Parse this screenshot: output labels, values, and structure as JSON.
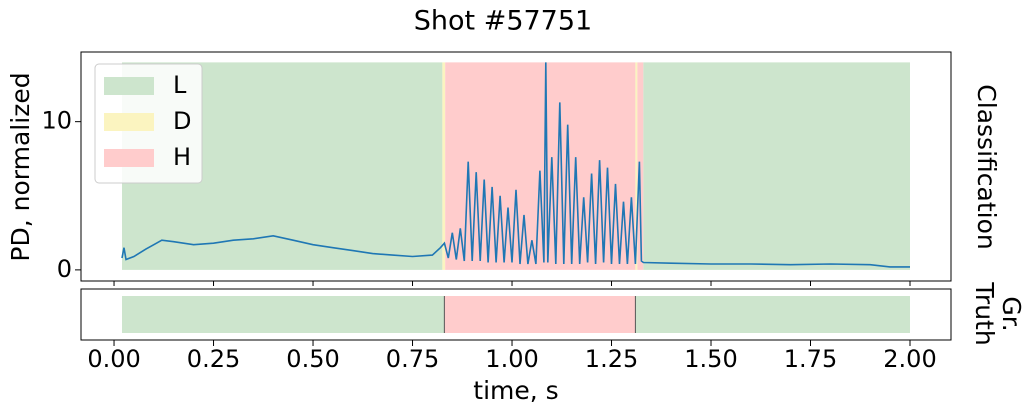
{
  "chart_data": {
    "type": "line",
    "title": "Shot #57751",
    "xlabel": "time, s",
    "ylabel": "PD, normalized",
    "right_label": "Classification",
    "gt_label": [
      "Gr.",
      "Truth"
    ],
    "xlim": [
      -0.083,
      2.103
    ],
    "ylim": [
      -0.75,
      14.7
    ],
    "xticks": [
      {
        "value": 0,
        "label": "0.00"
      },
      {
        "value": 0.25,
        "label": "0.25"
      },
      {
        "value": 0.5,
        "label": "0.50"
      },
      {
        "value": 0.75,
        "label": "0.75"
      },
      {
        "value": 1,
        "label": "1.00"
      },
      {
        "value": 1.25,
        "label": "1.25"
      },
      {
        "value": 1.5,
        "label": "1.50"
      },
      {
        "value": 1.75,
        "label": "1.75"
      },
      {
        "value": 2,
        "label": "2.00"
      }
    ],
    "yticks": [
      0,
      10
    ],
    "region_top": 14,
    "classes": [
      {
        "name": "L",
        "color": "#cde5cd"
      },
      {
        "name": "D",
        "color": "#fbf4c0"
      },
      {
        "name": "H",
        "color": "#ffcccc"
      }
    ],
    "classification": [
      {
        "class": 0,
        "start": 0.02,
        "end": 0.825
      },
      {
        "class": 1,
        "start": 0.825,
        "end": 0.832
      },
      {
        "class": 2,
        "start": 0.832,
        "end": 1.31
      },
      {
        "class": 1,
        "start": 1.31,
        "end": 1.315
      },
      {
        "class": 2,
        "start": 1.315,
        "end": 1.33
      },
      {
        "class": 0,
        "start": 1.33,
        "end": 2.0
      }
    ],
    "ground_truth": [
      {
        "class": 0,
        "start": 0.02,
        "end": 0.83
      },
      {
        "class": 2,
        "start": 0.83,
        "end": 1.31
      },
      {
        "class": 0,
        "start": 1.31,
        "end": 2.0
      }
    ],
    "x": [
      0.02,
      0.025,
      0.03,
      0.05,
      0.08,
      0.1,
      0.12,
      0.15,
      0.2,
      0.25,
      0.3,
      0.35,
      0.4,
      0.45,
      0.5,
      0.55,
      0.6,
      0.65,
      0.7,
      0.75,
      0.8,
      0.82,
      0.83,
      0.84,
      0.85,
      0.86,
      0.87,
      0.88,
      0.89,
      0.9,
      0.91,
      0.92,
      0.93,
      0.94,
      0.95,
      0.96,
      0.97,
      0.98,
      0.99,
      1.0,
      1.01,
      1.02,
      1.03,
      1.04,
      1.05,
      1.06,
      1.07,
      1.08,
      1.085,
      1.09,
      1.1,
      1.11,
      1.12,
      1.13,
      1.14,
      1.15,
      1.16,
      1.17,
      1.18,
      1.19,
      1.2,
      1.21,
      1.22,
      1.23,
      1.24,
      1.25,
      1.26,
      1.27,
      1.28,
      1.29,
      1.3,
      1.31,
      1.32,
      1.325,
      1.33,
      1.4,
      1.5,
      1.6,
      1.7,
      1.8,
      1.9,
      1.95,
      2.0
    ],
    "series": [
      {
        "color": "#1f77b4",
        "values": [
          0.8,
          1.5,
          0.7,
          0.9,
          1.4,
          1.7,
          2.0,
          1.9,
          1.7,
          1.8,
          2.0,
          2.1,
          2.3,
          2.0,
          1.7,
          1.5,
          1.3,
          1.1,
          1.0,
          0.9,
          1.0,
          1.5,
          1.8,
          0.8,
          2.5,
          0.7,
          2.8,
          0.6,
          7.3,
          0.6,
          6.6,
          0.6,
          6.1,
          0.5,
          5.6,
          0.5,
          5.0,
          0.5,
          4.2,
          0.5,
          5.4,
          0.4,
          3.7,
          0.4,
          2.0,
          0.4,
          6.7,
          0.5,
          14.0,
          0.5,
          7.6,
          0.4,
          11.3,
          0.4,
          9.8,
          0.4,
          7.6,
          0.4,
          4.9,
          0.5,
          6.5,
          0.4,
          7.4,
          0.5,
          6.9,
          0.4,
          5.8,
          0.4,
          4.6,
          0.4,
          4.9,
          0.4,
          7.3,
          0.6,
          0.5,
          0.45,
          0.4,
          0.4,
          0.35,
          0.4,
          0.35,
          0.2,
          0.2
        ]
      }
    ]
  }
}
